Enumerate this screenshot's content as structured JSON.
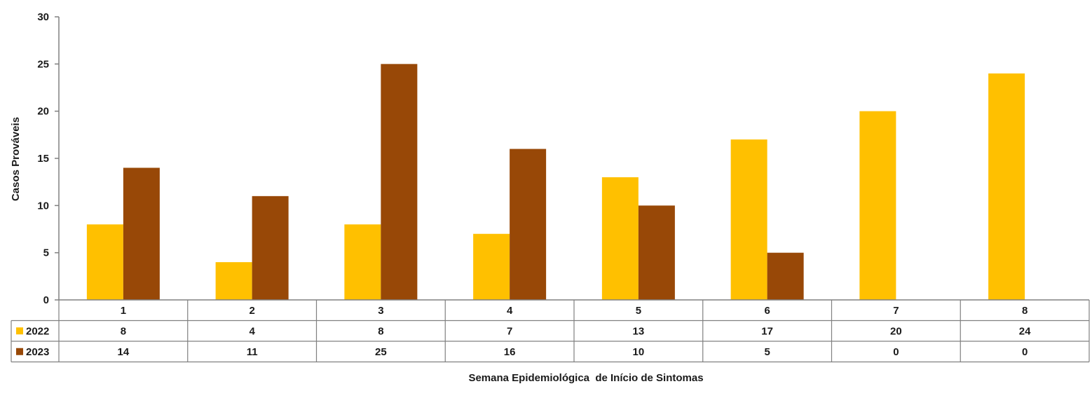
{
  "chart_data": {
    "type": "bar",
    "title": "",
    "xlabel": "Semana Epidemiológica  de Início de Sintomas",
    "ylabel": "Casos Prováveis",
    "ylim": [
      0,
      30
    ],
    "yticks": [
      0,
      5,
      10,
      15,
      20,
      25,
      30
    ],
    "grid": false,
    "legend": "data-table-left",
    "categories": [
      "1",
      "2",
      "3",
      "4",
      "5",
      "6",
      "7",
      "8"
    ],
    "series": [
      {
        "name": "2022",
        "color": "#FFC000",
        "values": [
          8,
          4,
          8,
          7,
          13,
          17,
          20,
          24
        ]
      },
      {
        "name": "2023",
        "color": "#984807",
        "values": [
          14,
          11,
          25,
          16,
          10,
          5,
          0,
          0
        ]
      }
    ]
  }
}
